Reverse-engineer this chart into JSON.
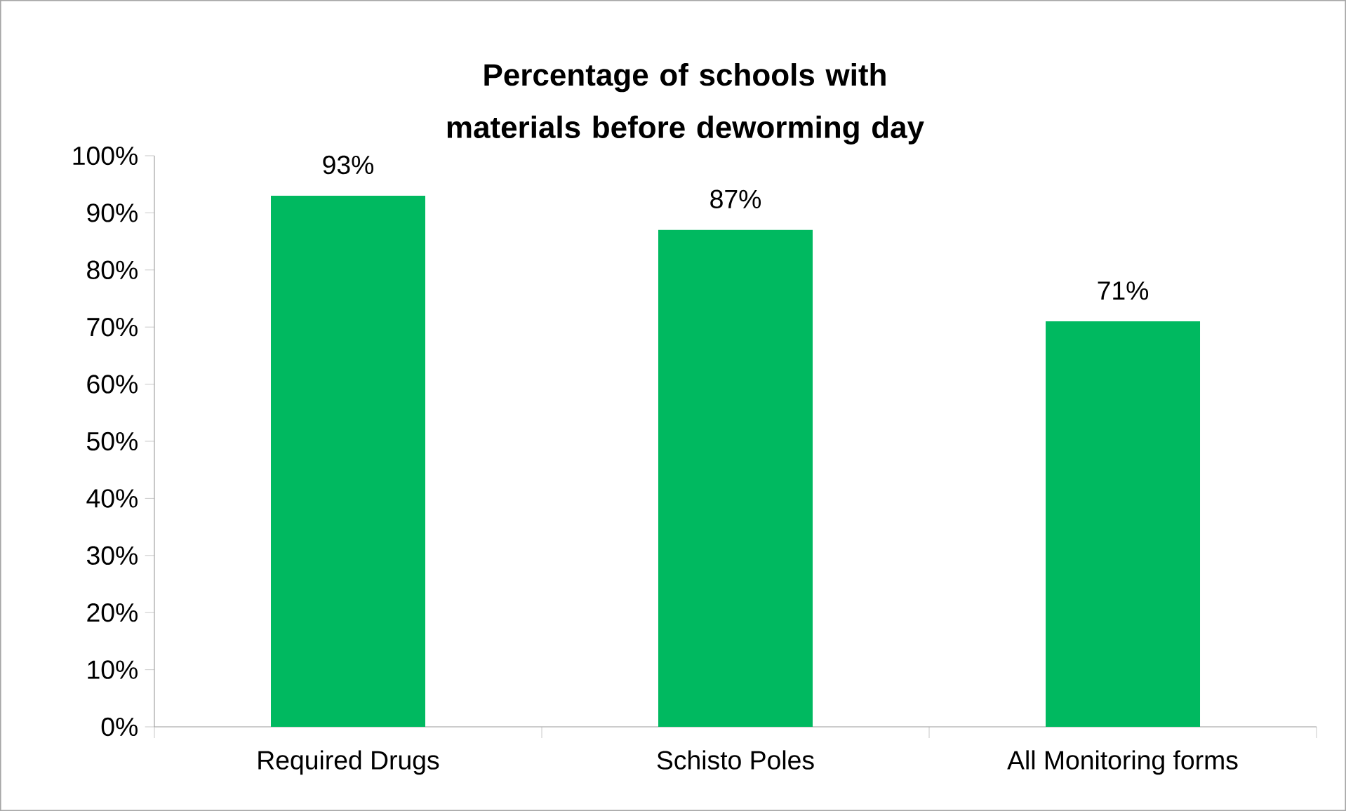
{
  "chart_data": {
    "type": "bar",
    "title": "Percentage of schools with materials before deworming day",
    "categories": [
      "Required Drugs",
      "Schisto Poles",
      "All Monitoring forms"
    ],
    "values": [
      93,
      87,
      71
    ],
    "value_labels": [
      "93%",
      "87%",
      "71%"
    ],
    "color": "#00b960",
    "ylim": [
      0,
      100
    ],
    "yticks": [
      {
        "value": 0,
        "label": "0%"
      },
      {
        "value": 10,
        "label": "10%"
      },
      {
        "value": 20,
        "label": "20%"
      },
      {
        "value": 30,
        "label": "30%"
      },
      {
        "value": 40,
        "label": "40%"
      },
      {
        "value": 50,
        "label": "50%"
      },
      {
        "value": 60,
        "label": "60%"
      },
      {
        "value": 70,
        "label": "70%"
      },
      {
        "value": 80,
        "label": "80%"
      },
      {
        "value": 90,
        "label": "90%"
      },
      {
        "value": 100,
        "label": "100%"
      }
    ],
    "grid": false
  }
}
